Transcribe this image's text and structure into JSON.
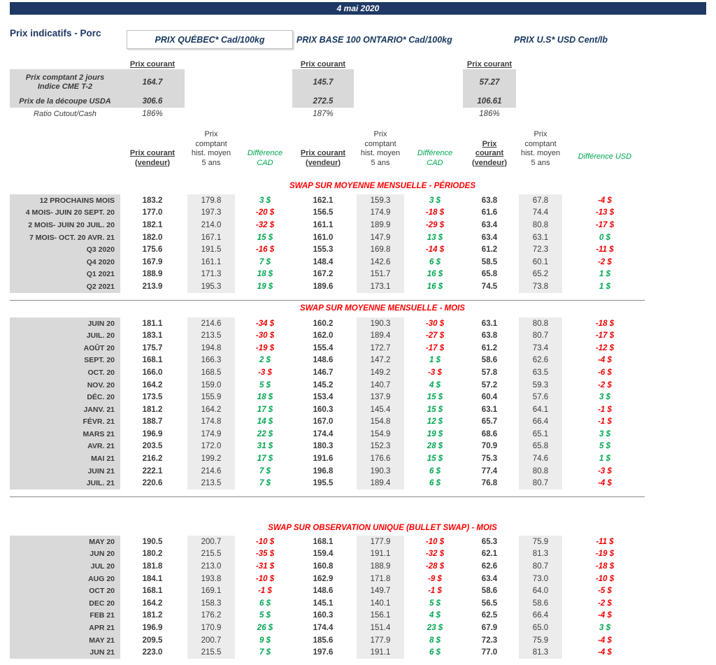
{
  "colors": {
    "navy": "#1F3864",
    "positive_green": "#00A651",
    "negative_red": "#EE0000",
    "section_title_red": "#FF0000",
    "label_shade": "#D9D9D9",
    "hist_shade": "#ECECEC"
  },
  "banner": {
    "date": "4 mai 2020"
  },
  "page_title": "Prix indicatifs - Porc",
  "market_titles": [
    "PRIX QUÉBEC* Cad/100kg",
    "PRIX BASE 100 ONTARIO* Cad/100kg",
    "PRIX U.S* USD Cent/lb"
  ],
  "spot": {
    "current_label": "Prix courant",
    "rows": [
      {
        "label": "Prix comptant 2 jours\nIndice CME T-2",
        "values": [
          "164.7",
          "145.7",
          "57.27"
        ],
        "shaded": true
      },
      {
        "label": "Prix de la découpe USDA",
        "values": [
          "306.6",
          "272.5",
          "106.61"
        ],
        "shaded": true
      },
      {
        "label": "Ratio Cutout/Cash",
        "values": [
          "186%",
          "187%",
          "186%"
        ],
        "shaded": false
      }
    ]
  },
  "column_headers": {
    "groups": [
      {
        "current": [
          "Prix courant",
          "(vendeur)"
        ],
        "hist": [
          "Prix",
          "comptant",
          "hist. moyen",
          "5 ans"
        ],
        "diff": [
          "Différence",
          "CAD"
        ]
      },
      {
        "current": [
          "Prix courant",
          "(vendeur)"
        ],
        "hist": [
          "Prix",
          "comptant",
          "hist. moyen",
          "5 ans"
        ],
        "diff": [
          "Différence",
          "CAD"
        ]
      },
      {
        "current": [
          "Prix",
          "courant",
          "(vendeur)"
        ],
        "hist": [
          "Prix",
          "comptant",
          "hist. moyen",
          "5 ans"
        ],
        "diff": [
          "Différence USD"
        ]
      }
    ]
  },
  "sections": [
    {
      "title": "SWAP SUR MOYENNE MENSUELLE - PÉRIODES",
      "rule_after": true,
      "rows": [
        {
          "label": "12 PROCHAINS MOIS",
          "qc": [
            "183.2",
            "179.8",
            "3 $"
          ],
          "on": [
            "162.1",
            "159.3",
            "3 $"
          ],
          "us": [
            "63.8",
            "67.8",
            "-4 $"
          ]
        },
        {
          "label": "4 MOIS- JUIN 20 SEPT. 20",
          "qc": [
            "177.0",
            "197.3",
            "-20 $"
          ],
          "on": [
            "156.5",
            "174.9",
            "-18 $"
          ],
          "us": [
            "61.6",
            "74.4",
            "-13 $"
          ]
        },
        {
          "label": "2 MOIS- JUIN 20 JUIL. 20",
          "qc": [
            "182.1",
            "214.0",
            "-32 $"
          ],
          "on": [
            "161.1",
            "189.9",
            "-29 $"
          ],
          "us": [
            "63.4",
            "80.8",
            "-17 $"
          ]
        },
        {
          "label": "7 MOIS- OCT. 20 AVR. 21",
          "qc": [
            "182.0",
            "167.1",
            "15 $"
          ],
          "on": [
            "161.0",
            "147.9",
            "13 $"
          ],
          "us": [
            "63.4",
            "63.1",
            "0 $"
          ]
        },
        {
          "label": "Q3 2020",
          "qc": [
            "175.6",
            "191.5",
            "-16 $"
          ],
          "on": [
            "155.3",
            "169.8",
            "-14 $"
          ],
          "us": [
            "61.2",
            "72.3",
            "-11 $"
          ]
        },
        {
          "label": "Q4 2020",
          "qc": [
            "167.9",
            "161.1",
            "7 $"
          ],
          "on": [
            "148.4",
            "142.6",
            "6 $"
          ],
          "us": [
            "58.5",
            "60.1",
            "-2 $"
          ]
        },
        {
          "label": "Q1 2021",
          "qc": [
            "188.9",
            "171.3",
            "18 $"
          ],
          "on": [
            "167.2",
            "151.7",
            "16 $"
          ],
          "us": [
            "65.8",
            "65.2",
            "1 $"
          ]
        },
        {
          "label": "Q2 2021",
          "qc": [
            "213.9",
            "195.3",
            "19 $"
          ],
          "on": [
            "189.6",
            "173.1",
            "16 $"
          ],
          "us": [
            "74.5",
            "73.8",
            "1 $"
          ]
        }
      ]
    },
    {
      "title": "SWAP SUR MOYENNE MENSUELLE - MOIS",
      "rule_after": true,
      "rows": [
        {
          "label": "JUIN 20",
          "qc": [
            "181.1",
            "214.6",
            "-34 $"
          ],
          "on": [
            "160.2",
            "190.3",
            "-30 $"
          ],
          "us": [
            "63.1",
            "80.8",
            "-18 $"
          ]
        },
        {
          "label": "JUIL. 20",
          "qc": [
            "183.1",
            "213.5",
            "-30 $"
          ],
          "on": [
            "162.0",
            "189.4",
            "-27 $"
          ],
          "us": [
            "63.8",
            "80.7",
            "-17 $"
          ]
        },
        {
          "label": "AOÛT 20",
          "qc": [
            "175.7",
            "194.8",
            "-19 $"
          ],
          "on": [
            "155.4",
            "172.7",
            "-17 $"
          ],
          "us": [
            "61.2",
            "73.4",
            "-12 $"
          ]
        },
        {
          "label": "SEPT. 20",
          "qc": [
            "168.1",
            "166.3",
            "2 $"
          ],
          "on": [
            "148.6",
            "147.2",
            "1 $"
          ],
          "us": [
            "58.6",
            "62.6",
            "-4 $"
          ]
        },
        {
          "label": "OCT. 20",
          "qc": [
            "166.0",
            "168.5",
            "-3 $"
          ],
          "on": [
            "146.7",
            "149.2",
            "-3 $"
          ],
          "us": [
            "57.8",
            "63.5",
            "-6 $"
          ]
        },
        {
          "label": "NOV. 20",
          "qc": [
            "164.2",
            "159.0",
            "5 $"
          ],
          "on": [
            "145.2",
            "140.7",
            "4 $"
          ],
          "us": [
            "57.2",
            "59.3",
            "-2 $"
          ]
        },
        {
          "label": "DÉC. 20",
          "qc": [
            "173.5",
            "155.9",
            "18 $"
          ],
          "on": [
            "153.4",
            "137.9",
            "15 $"
          ],
          "us": [
            "60.4",
            "57.6",
            "3 $"
          ]
        },
        {
          "label": "JANV. 21",
          "qc": [
            "181.2",
            "164.2",
            "17 $"
          ],
          "on": [
            "160.3",
            "145.4",
            "15 $"
          ],
          "us": [
            "63.1",
            "64.1",
            "-1 $"
          ]
        },
        {
          "label": "FÉVR. 21",
          "qc": [
            "188.7",
            "174.8",
            "14 $"
          ],
          "on": [
            "167.0",
            "154.8",
            "12 $"
          ],
          "us": [
            "65.7",
            "66.4",
            "-1 $"
          ]
        },
        {
          "label": "MARS 21",
          "qc": [
            "196.9",
            "174.9",
            "22 $"
          ],
          "on": [
            "174.4",
            "154.9",
            "19 $"
          ],
          "us": [
            "68.6",
            "65.1",
            "3 $"
          ]
        },
        {
          "label": "AVR. 21",
          "qc": [
            "203.5",
            "172.0",
            "31 $"
          ],
          "on": [
            "180.3",
            "152.3",
            "28 $"
          ],
          "us": [
            "70.9",
            "65.8",
            "5 $"
          ]
        },
        {
          "label": "MAI 21",
          "qc": [
            "216.2",
            "199.2",
            "17 $"
          ],
          "on": [
            "191.6",
            "176.6",
            "15 $"
          ],
          "us": [
            "75.3",
            "74.6",
            "1 $"
          ]
        },
        {
          "label": "JUIN 21",
          "qc": [
            "222.1",
            "214.6",
            "7 $"
          ],
          "on": [
            "196.8",
            "190.3",
            "6 $"
          ],
          "us": [
            "77.4",
            "80.8",
            "-3 $"
          ]
        },
        {
          "label": "JUIL. 21",
          "qc": [
            "220.6",
            "213.5",
            "7 $"
          ],
          "on": [
            "195.5",
            "189.4",
            "6 $"
          ],
          "us": [
            "76.8",
            "80.7",
            "-4 $"
          ]
        }
      ]
    },
    {
      "title": "SWAP SUR OBSERVATION UNIQUE (BULLET SWAP) - MOIS",
      "rule_after": false,
      "rows": [
        {
          "label": "MAY 20",
          "qc": [
            "190.5",
            "200.7",
            "-10 $"
          ],
          "on": [
            "168.1",
            "177.9",
            "-10 $"
          ],
          "us": [
            "65.3",
            "75.9",
            "-11 $"
          ]
        },
        {
          "label": "JUN 20",
          "qc": [
            "180.2",
            "215.5",
            "-35 $"
          ],
          "on": [
            "159.4",
            "191.1",
            "-32 $"
          ],
          "us": [
            "62.1",
            "81.3",
            "-19 $"
          ]
        },
        {
          "label": "JUL 20",
          "qc": [
            "181.8",
            "213.0",
            "-31 $"
          ],
          "on": [
            "160.8",
            "188.9",
            "-28 $"
          ],
          "us": [
            "62.6",
            "80.7",
            "-18 $"
          ]
        },
        {
          "label": "AUG 20",
          "qc": [
            "184.1",
            "193.8",
            "-10 $"
          ],
          "on": [
            "162.9",
            "171.8",
            "-9 $"
          ],
          "us": [
            "63.4",
            "73.0",
            "-10 $"
          ]
        },
        {
          "label": "OCT 20",
          "qc": [
            "168.1",
            "169.1",
            "-1 $"
          ],
          "on": [
            "148.6",
            "149.7",
            "-1 $"
          ],
          "us": [
            "58.6",
            "64.0",
            "-5 $"
          ]
        },
        {
          "label": "DEC 20",
          "qc": [
            "164.2",
            "158.3",
            "6 $"
          ],
          "on": [
            "145.1",
            "140.1",
            "5 $"
          ],
          "us": [
            "56.5",
            "58.6",
            "-2 $"
          ]
        },
        {
          "label": "FEB 21",
          "qc": [
            "181.2",
            "176.2",
            "5 $"
          ],
          "on": [
            "160.3",
            "156.1",
            "4 $"
          ],
          "us": [
            "62.5",
            "66.4",
            "-4 $"
          ]
        },
        {
          "label": "APR 21",
          "qc": [
            "196.9",
            "170.9",
            "26 $"
          ],
          "on": [
            "174.4",
            "151.4",
            "23 $"
          ],
          "us": [
            "67.9",
            "65.0",
            "3 $"
          ]
        },
        {
          "label": "MAY 21",
          "qc": [
            "209.5",
            "200.7",
            "9 $"
          ],
          "on": [
            "185.6",
            "177.9",
            "8 $"
          ],
          "us": [
            "72.3",
            "75.9",
            "-4 $"
          ]
        },
        {
          "label": "JUN 21",
          "qc": [
            "223.0",
            "215.5",
            "7 $"
          ],
          "on": [
            "197.6",
            "191.1",
            "6 $"
          ],
          "us": [
            "77.0",
            "81.3",
            "-4 $"
          ]
        }
      ]
    }
  ]
}
